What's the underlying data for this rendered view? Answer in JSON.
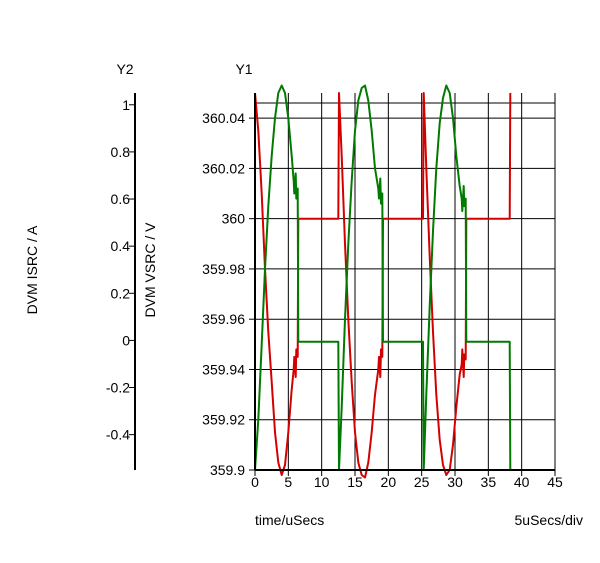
{
  "chart_data": {
    "type": "line",
    "title": "",
    "xlabel": "time/uSecs",
    "x_scale_note": "5uSecs/div",
    "xlim": [
      0,
      45
    ],
    "x_ticks": [
      0,
      5,
      10,
      15,
      20,
      25,
      30,
      35,
      40,
      45
    ],
    "y1": {
      "axis_title": "Y1",
      "label": "DVM VSRC / V",
      "ylim": [
        359.9,
        360.05
      ],
      "ticks": [
        "359.9",
        "359.92",
        "359.94",
        "359.96",
        "359.98",
        "360",
        "360.02",
        "360.04"
      ]
    },
    "y2": {
      "axis_title": "Y2",
      "label": "DVM ISRC / A",
      "ylim": [
        -0.55,
        1.05
      ],
      "ticks": [
        "-0.4",
        "-0.2",
        "0",
        "0.2",
        "0.4",
        "0.6",
        "0.8",
        "1"
      ]
    },
    "grid": true,
    "series": [
      {
        "color": "#d40000",
        "axis": "y1",
        "points": [
          [
            0,
            360.05
          ],
          [
            0.5,
            360.035
          ],
          [
            1,
            360.01
          ],
          [
            1.5,
            359.98
          ],
          [
            2,
            359.955
          ],
          [
            2.5,
            359.935
          ],
          [
            3,
            359.915
          ],
          [
            3.5,
            359.903
          ],
          [
            4,
            359.898
          ],
          [
            4.5,
            359.902
          ],
          [
            5,
            359.915
          ],
          [
            5.5,
            359.932
          ],
          [
            5.8,
            359.94
          ],
          [
            5.9,
            359.945
          ],
          [
            6.1,
            359.937
          ],
          [
            6.2,
            359.948
          ],
          [
            6.4,
            359.945
          ],
          [
            6.5,
            360.0
          ],
          [
            12.5,
            360.0
          ],
          [
            12.6,
            360.05
          ],
          [
            13,
            360.025
          ],
          [
            13.5,
            359.99
          ],
          [
            14,
            359.96
          ],
          [
            14.5,
            359.935
          ],
          [
            15,
            359.915
          ],
          [
            15.5,
            359.903
          ],
          [
            16,
            359.898
          ],
          [
            16.5,
            359.897
          ],
          [
            17,
            359.903
          ],
          [
            17.5,
            359.915
          ],
          [
            18,
            359.93
          ],
          [
            18.5,
            359.94
          ],
          [
            18.6,
            359.945
          ],
          [
            18.8,
            359.937
          ],
          [
            18.9,
            359.948
          ],
          [
            19.1,
            359.945
          ],
          [
            19.2,
            360.0
          ],
          [
            25.2,
            360.0
          ],
          [
            25.3,
            360.05
          ],
          [
            25.7,
            360.02
          ],
          [
            26.2,
            359.985
          ],
          [
            26.7,
            359.955
          ],
          [
            27.2,
            359.93
          ],
          [
            27.7,
            359.912
          ],
          [
            28.2,
            359.902
          ],
          [
            28.7,
            359.898
          ],
          [
            29.2,
            359.9
          ],
          [
            29.7,
            359.91
          ],
          [
            30.2,
            359.925
          ],
          [
            30.7,
            359.938
          ],
          [
            31,
            359.942
          ],
          [
            31.1,
            359.948
          ],
          [
            31.3,
            359.937
          ],
          [
            31.4,
            359.946
          ],
          [
            31.6,
            359.944
          ],
          [
            31.7,
            360.0
          ],
          [
            38.2,
            360.0
          ],
          [
            38.3,
            360.05
          ]
        ]
      },
      {
        "color": "#007a00",
        "axis": "y1",
        "points": [
          [
            0,
            359.9
          ],
          [
            0.5,
            359.92
          ],
          [
            1,
            359.95
          ],
          [
            1.5,
            359.98
          ],
          [
            2,
            360.005
          ],
          [
            2.5,
            360.025
          ],
          [
            3,
            360.04
          ],
          [
            3.5,
            360.05
          ],
          [
            4,
            360.053
          ],
          [
            4.5,
            360.05
          ],
          [
            5,
            360.04
          ],
          [
            5.5,
            360.025
          ],
          [
            5.8,
            360.015
          ],
          [
            5.9,
            360.01
          ],
          [
            6.1,
            360.018
          ],
          [
            6.2,
            360.008
          ],
          [
            6.4,
            360.012
          ],
          [
            6.5,
            359.951
          ],
          [
            12.5,
            359.951
          ],
          [
            12.6,
            359.9
          ],
          [
            13,
            359.925
          ],
          [
            13.5,
            359.96
          ],
          [
            14,
            359.99
          ],
          [
            14.5,
            360.015
          ],
          [
            15,
            360.035
          ],
          [
            15.5,
            360.047
          ],
          [
            16,
            360.052
          ],
          [
            16.5,
            360.053
          ],
          [
            17,
            360.047
          ],
          [
            17.5,
            360.035
          ],
          [
            18,
            360.02
          ],
          [
            18.5,
            360.012
          ],
          [
            18.6,
            360.008
          ],
          [
            18.8,
            360.016
          ],
          [
            18.9,
            360.006
          ],
          [
            19.1,
            360.01
          ],
          [
            19.2,
            359.951
          ],
          [
            25.2,
            359.951
          ],
          [
            25.3,
            359.9
          ],
          [
            25.7,
            359.93
          ],
          [
            26.2,
            359.965
          ],
          [
            26.7,
            359.995
          ],
          [
            27.2,
            360.02
          ],
          [
            27.7,
            360.038
          ],
          [
            28.2,
            360.048
          ],
          [
            28.7,
            360.053
          ],
          [
            29.2,
            360.05
          ],
          [
            29.7,
            360.04
          ],
          [
            30.2,
            360.025
          ],
          [
            30.7,
            360.013
          ],
          [
            31,
            360.008
          ],
          [
            31.1,
            360.003
          ],
          [
            31.3,
            360.013
          ],
          [
            31.4,
            360.005
          ],
          [
            31.6,
            360.008
          ],
          [
            31.7,
            359.951
          ],
          [
            38.2,
            359.951
          ],
          [
            38.3,
            359.9
          ]
        ]
      }
    ]
  }
}
